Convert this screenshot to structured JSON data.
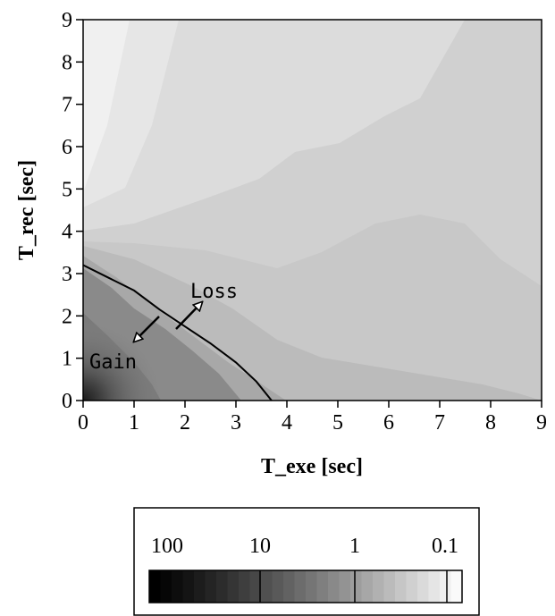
{
  "chart_data": {
    "type": "heatmap",
    "title": "",
    "xlabel": "T_exe [sec]",
    "ylabel": "T_rec [sec]",
    "xlim": [
      0,
      9
    ],
    "ylim": [
      0,
      9
    ],
    "x_ticks": [
      "0",
      "1",
      "2",
      "3",
      "4",
      "5",
      "6",
      "7",
      "8",
      "9"
    ],
    "y_ticks": [
      "0",
      "1",
      "2",
      "3",
      "4",
      "5",
      "6",
      "7",
      "8",
      "9"
    ],
    "colormap": "grayscale, log scale (dark = high, light = low)",
    "colorbar": {
      "scale": "log",
      "range": [
        100,
        0.1
      ],
      "tick_labels": [
        "100",
        "10",
        "1",
        "0.1"
      ]
    },
    "contour_line": {
      "label": "boundary between Gain and Loss",
      "points": [
        [
          0,
          3.2
        ],
        [
          0.5,
          2.9
        ],
        [
          1.0,
          2.6
        ],
        [
          1.5,
          2.15
        ],
        [
          2.0,
          1.75
        ],
        [
          2.5,
          1.35
        ],
        [
          3.0,
          0.9
        ],
        [
          3.4,
          0.45
        ],
        [
          3.7,
          0
        ]
      ]
    },
    "annotations": [
      {
        "text": "Loss",
        "x": 2.6,
        "y": 2.5
      },
      {
        "text": "Gain",
        "x": 0.2,
        "y": 0.8
      }
    ]
  }
}
